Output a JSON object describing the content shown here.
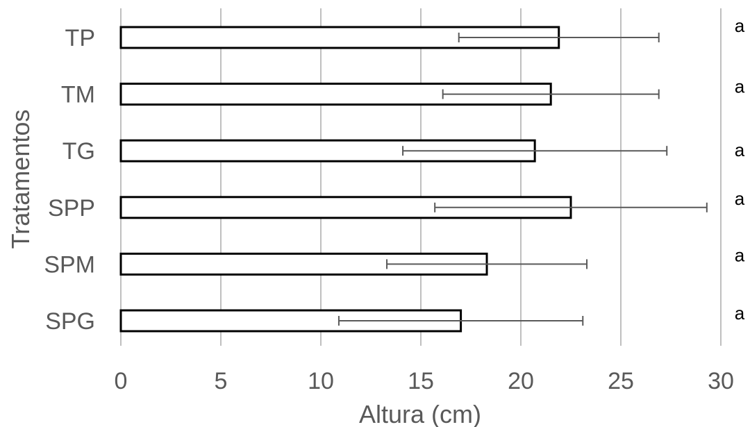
{
  "chart_data": {
    "type": "bar",
    "orientation": "horizontal",
    "categories": [
      "TP",
      "TM",
      "TG",
      "SPP",
      "SPM",
      "SPG"
    ],
    "values": [
      21.9,
      21.5,
      20.7,
      22.5,
      18.3,
      17.0
    ],
    "error": [
      5.0,
      5.4,
      6.6,
      6.8,
      5.0,
      6.1
    ],
    "significance": [
      "a",
      "a",
      "a",
      "a",
      "a",
      "a"
    ],
    "xlabel": "Altura (cm)",
    "ylabel": "Tratamentos",
    "xlim": [
      0,
      30
    ],
    "xticks": [
      "0",
      "5",
      "10",
      "15",
      "20",
      "25",
      "30"
    ],
    "grid": true,
    "legend": "none",
    "colors": {
      "bar_fill": "#ffffff",
      "bar_stroke": "#000000",
      "grid": "#bfbfbf",
      "error_bar": "#595959",
      "text": "#595959"
    }
  }
}
